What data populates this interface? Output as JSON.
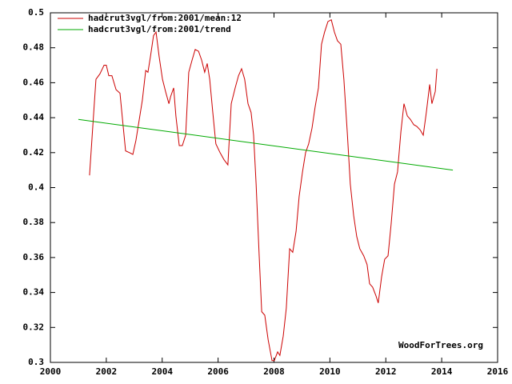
{
  "chart_data": {
    "type": "line",
    "annotation": "WoodForTrees.org",
    "xlim": [
      2000,
      2016
    ],
    "xticks": [
      2000,
      2002,
      2004,
      2006,
      2008,
      2010,
      2012,
      2014,
      2016
    ],
    "ylim": [
      0.3,
      0.5
    ],
    "yticks": [
      0.3,
      0.32,
      0.34,
      0.36,
      0.38,
      0.4,
      0.42,
      0.44,
      0.46,
      0.48,
      0.5
    ],
    "grid": false,
    "legend": "top-left",
    "series": [
      {
        "name": "hadcrut3vgl/from:2001/mean:12",
        "color": "#cc0000",
        "x": [
          2001.4,
          2001.55,
          2001.63,
          2001.77,
          2001.92,
          2002.0,
          2002.09,
          2002.2,
          2002.35,
          2002.49,
          2002.58,
          2002.69,
          2002.83,
          2002.95,
          2003.06,
          2003.2,
          2003.29,
          2003.41,
          2003.49,
          2003.58,
          2003.69,
          2003.78,
          2003.89,
          2004.01,
          2004.12,
          2004.24,
          2004.3,
          2004.41,
          2004.49,
          2004.61,
          2004.72,
          2004.84,
          2004.95,
          2005.07,
          2005.18,
          2005.3,
          2005.41,
          2005.52,
          2005.61,
          2005.7,
          2005.81,
          2005.92,
          2006.07,
          2006.21,
          2006.35,
          2006.47,
          2006.61,
          2006.73,
          2006.84,
          2006.95,
          2007.07,
          2007.18,
          2007.27,
          2007.36,
          2007.47,
          2007.56,
          2007.67,
          2007.79,
          2007.93,
          2008.01,
          2008.13,
          2008.21,
          2008.33,
          2008.44,
          2008.56,
          2008.67,
          2008.79,
          2008.9,
          2009.02,
          2009.13,
          2009.24,
          2009.36,
          2009.47,
          2009.59,
          2009.7,
          2009.81,
          2009.93,
          2010.05,
          2010.16,
          2010.27,
          2010.39,
          2010.5,
          2010.62,
          2010.73,
          2010.85,
          2010.96,
          2011.07,
          2011.21,
          2011.33,
          2011.42,
          2011.53,
          2011.65,
          2011.73,
          2011.85,
          2011.96,
          2012.08,
          2012.19,
          2012.31,
          2012.42,
          2012.54,
          2012.65,
          2012.77,
          2012.88,
          2013.0,
          2013.11,
          2013.23,
          2013.34,
          2013.45,
          2013.57,
          2013.65,
          2013.77,
          2013.83
        ],
        "values": [
          0.407,
          0.443,
          0.462,
          0.465,
          0.47,
          0.47,
          0.464,
          0.464,
          0.456,
          0.454,
          0.439,
          0.421,
          0.42,
          0.419,
          0.427,
          0.441,
          0.45,
          0.467,
          0.466,
          0.475,
          0.487,
          0.489,
          0.475,
          0.462,
          0.455,
          0.448,
          0.452,
          0.457,
          0.441,
          0.424,
          0.424,
          0.43,
          0.466,
          0.473,
          0.479,
          0.478,
          0.473,
          0.466,
          0.471,
          0.462,
          0.443,
          0.425,
          0.42,
          0.416,
          0.413,
          0.448,
          0.457,
          0.464,
          0.468,
          0.462,
          0.448,
          0.443,
          0.43,
          0.402,
          0.361,
          0.329,
          0.327,
          0.313,
          0.301,
          0.301,
          0.306,
          0.304,
          0.315,
          0.331,
          0.365,
          0.363,
          0.375,
          0.395,
          0.409,
          0.42,
          0.425,
          0.434,
          0.446,
          0.457,
          0.482,
          0.489,
          0.495,
          0.496,
          0.489,
          0.484,
          0.482,
          0.462,
          0.432,
          0.402,
          0.384,
          0.372,
          0.365,
          0.361,
          0.356,
          0.345,
          0.343,
          0.338,
          0.334,
          0.349,
          0.359,
          0.361,
          0.379,
          0.402,
          0.409,
          0.432,
          0.448,
          0.441,
          0.439,
          0.436,
          0.435,
          0.433,
          0.43,
          0.443,
          0.459,
          0.448,
          0.455,
          0.468
        ]
      },
      {
        "name": "hadcrut3vgl/from:2001/trend",
        "color": "#00aa00",
        "x": [
          2001.0,
          2014.4
        ],
        "values": [
          0.439,
          0.41
        ]
      }
    ]
  }
}
